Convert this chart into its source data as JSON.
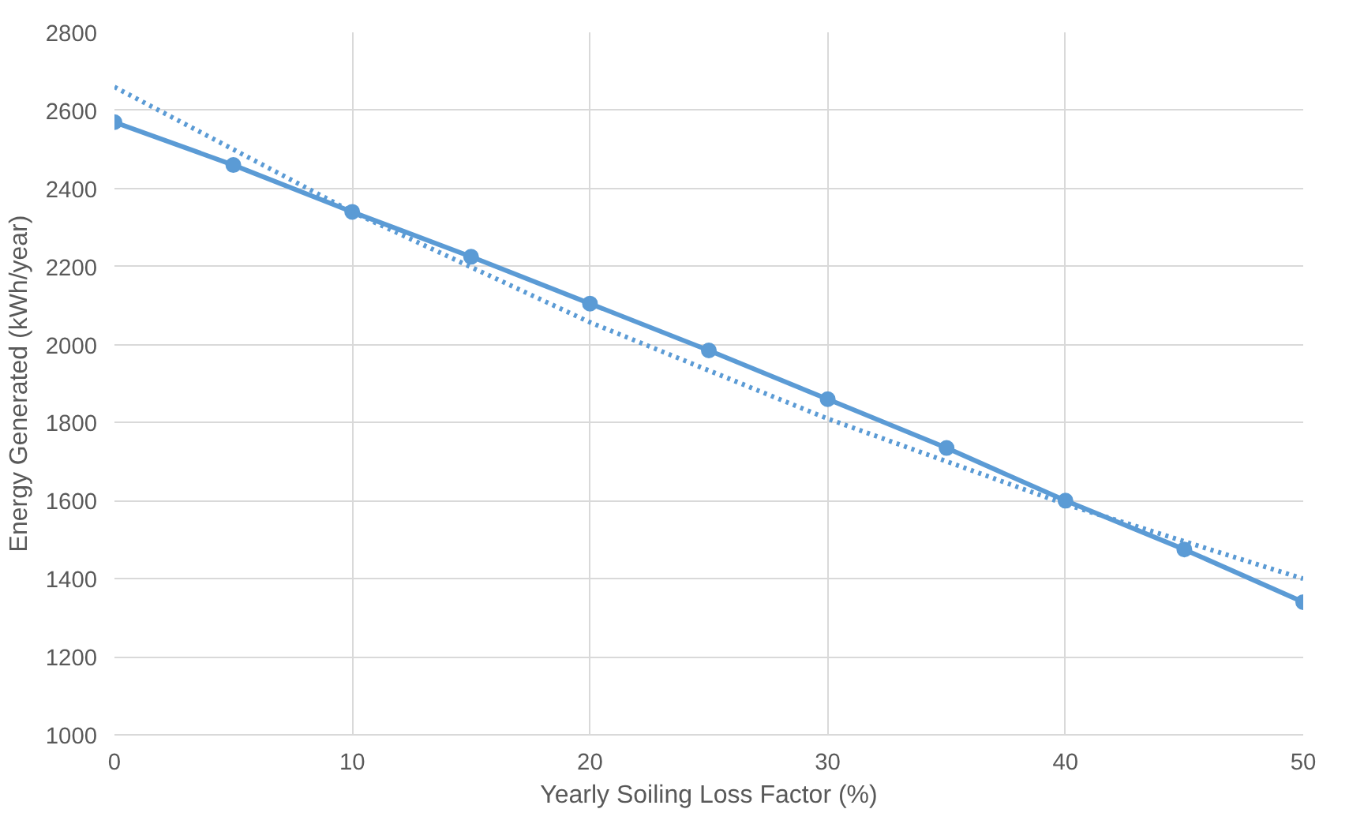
{
  "chart_data": {
    "type": "line",
    "xlabel": "Yearly Soiling Loss Factor (%)",
    "ylabel": "Energy Generated (kWh/year)",
    "x": [
      0,
      5,
      10,
      15,
      20,
      25,
      30,
      35,
      40,
      45,
      50
    ],
    "series": [
      {
        "color": "#5b9bd5",
        "values": [
          2570,
          2460,
          2340,
          2225,
          2105,
          1985,
          1860,
          1735,
          1600,
          1475,
          1340
        ],
        "marker": "circle",
        "line_style": "solid"
      },
      {
        "type": "line",
        "color": "#5b9bd5",
        "x": [
          0,
          10,
          20,
          30,
          40,
          50
        ],
        "values": [
          2660,
          2340,
          2057,
          1810,
          1591,
          1400
        ],
        "marker": "none",
        "line_style": "dotted"
      }
    ],
    "xlim": [
      0,
      50
    ],
    "xticks": [
      0,
      10,
      20,
      30,
      40,
      50
    ],
    "ylim": [
      1000,
      2800
    ],
    "yticks": [
      1000,
      1200,
      1400,
      1600,
      1800,
      2000,
      2200,
      2400,
      2600,
      2800
    ],
    "grid": true
  }
}
